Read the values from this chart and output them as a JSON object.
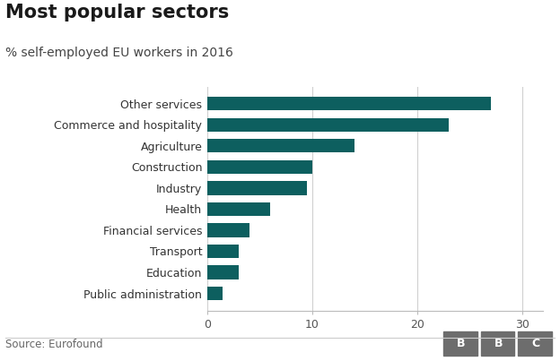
{
  "title": "Most popular sectors",
  "subtitle": "% self-employed EU workers in 2016",
  "source": "Source: Eurofound",
  "categories": [
    "Other services",
    "Commerce and hospitality",
    "Agriculture",
    "Construction",
    "Industry",
    "Health",
    "Financial services",
    "Transport",
    "Education",
    "Public administration"
  ],
  "values": [
    27.0,
    23.0,
    14.0,
    10.0,
    9.5,
    6.0,
    4.0,
    3.0,
    3.0,
    1.5
  ],
  "bar_color": "#0d5f5f",
  "xlim": [
    0,
    32
  ],
  "xticks": [
    0,
    10,
    20,
    30
  ],
  "background_color": "#ffffff",
  "title_fontsize": 15,
  "subtitle_fontsize": 10,
  "tick_fontsize": 9,
  "label_fontsize": 9,
  "source_fontsize": 8.5
}
